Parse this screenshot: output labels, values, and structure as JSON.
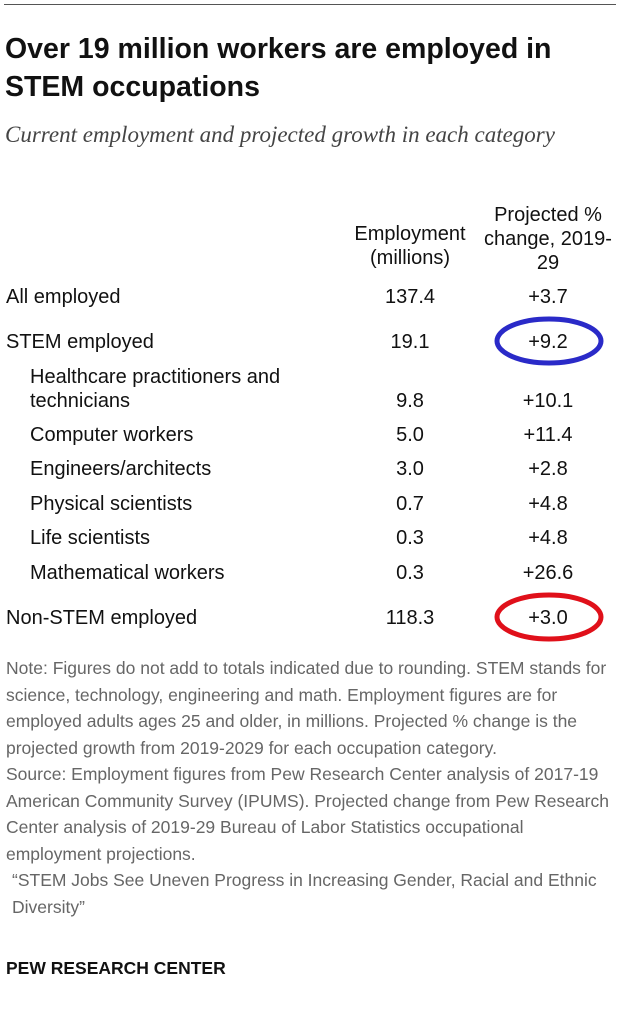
{
  "header": {
    "title": "Over 19 million workers are employed in STEM occupations",
    "subtitle": "Current employment and projected growth in each category"
  },
  "table": {
    "columns": [
      "Employment (millions)",
      "Projected % change, 2019-29"
    ],
    "rows": [
      [
        "All employed",
        "137.4",
        "+3.7"
      ],
      [
        "STEM employed",
        "19.1",
        "+9.2"
      ],
      [
        "Healthcare practitioners and technicians",
        "9.8",
        "+10.1"
      ],
      [
        "Computer workers",
        "5.0",
        "+11.4"
      ],
      [
        "Engineers/architects",
        "3.0",
        "+2.8"
      ],
      [
        "Physical scientists",
        "0.7",
        "+4.8"
      ],
      [
        "Life scientists",
        "0.3",
        "+4.8"
      ],
      [
        "Mathematical workers",
        "0.3",
        "+26.6"
      ],
      [
        "Non-STEM employed",
        "118.3",
        "+3.0"
      ]
    ]
  },
  "notes": {
    "note": "Note: Figures do not add to totals indicated due to rounding. STEM stands for science, technology, engineering and math. Employment figures are for employed adults ages 25 and older, in millions. Projected % change is the projected growth from 2019-2029 for each occupation category.",
    "source": "Source: Employment figures from Pew Research Center analysis of 2017-19 American Community Survey (IPUMS). Projected change from Pew Research Center analysis of 2019-29 Bureau of Labor Statistics occupational employment projections.",
    "citation": "“STEM Jobs See Uneven Progress in Increasing Gender, Racial and Ethnic Diversity”"
  },
  "footer": "PEW RESEARCH CENTER"
}
